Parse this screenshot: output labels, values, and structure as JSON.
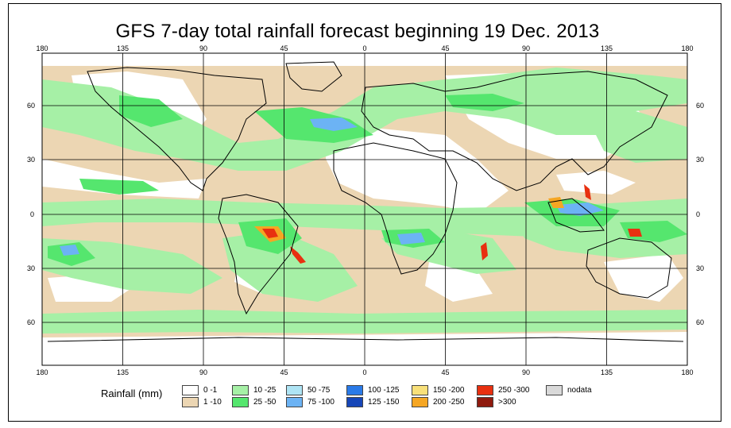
{
  "title": "GFS 7-day total rainfall forecast beginning 19 Dec. 2013",
  "axes": {
    "lon_ticks": [
      "180",
      "135",
      "90",
      "45",
      "0",
      "45",
      "90",
      "135",
      "180"
    ],
    "lat_ticks": [
      "60",
      "30",
      "0",
      "30",
      "60"
    ]
  },
  "legend": {
    "title": "Rainfall (mm)",
    "items": [
      {
        "label": "0 -1",
        "color": "#ffffff"
      },
      {
        "label": "1 -10",
        "color": "#ecd6b3"
      },
      {
        "label": "10 -25",
        "color": "#a6f0a6"
      },
      {
        "label": "25 -50",
        "color": "#55e66e"
      },
      {
        "label": "50 -75",
        "color": "#aee4f4"
      },
      {
        "label": "75 -100",
        "color": "#6cb3f4"
      },
      {
        "label": "100 -125",
        "color": "#2a7ae8"
      },
      {
        "label": "125 -150",
        "color": "#1646b8"
      },
      {
        "label": "150 -200",
        "color": "#f8e07a"
      },
      {
        "label": "200 -250",
        "color": "#f5a623"
      },
      {
        "label": "250 -300",
        "color": "#e83010"
      },
      {
        "label": ">300",
        "color": "#8f1a0e"
      },
      {
        "label": "nodata",
        "color": "#d9d9d9"
      }
    ]
  }
}
